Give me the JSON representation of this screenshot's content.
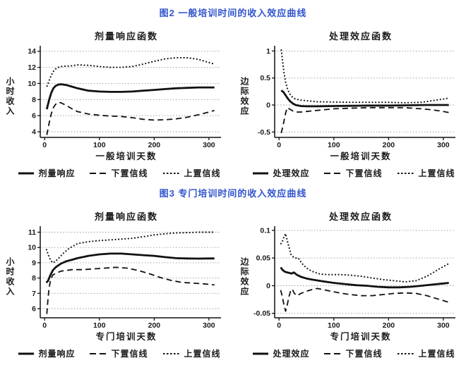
{
  "page": {
    "background": "#ffffff"
  },
  "colors": {
    "heading_blue": "#3254cd",
    "line_black": "#111111",
    "grid_gray": "#999999",
    "text_black": "#1a1a1a"
  },
  "figures": [
    {
      "heading": "图2 一般培训时间的收入效应曲线",
      "panels": [
        {
          "chart_index": 0,
          "legend": [
            {
              "style": "solid",
              "label": "剂量响应"
            },
            {
              "style": "dashed",
              "label": "下置信线"
            },
            {
              "style": "dotted",
              "label": "上置信线"
            }
          ]
        },
        {
          "chart_index": 1,
          "legend": [
            {
              "style": "solid",
              "label": "处理效应"
            },
            {
              "style": "dashed",
              "label": "下置信线"
            },
            {
              "style": "dotted",
              "label": "上置信线"
            }
          ]
        }
      ]
    },
    {
      "heading": "图3 专门培训时间的收入效应曲线",
      "panels": [
        {
          "chart_index": 2,
          "legend": [
            {
              "style": "solid",
              "label": "剂量响应"
            },
            {
              "style": "dashed",
              "label": "下置信线"
            },
            {
              "style": "dotted",
              "label": "上置信线"
            }
          ]
        },
        {
          "chart_index": 3,
          "legend": [
            {
              "style": "solid",
              "label": "处理效应"
            },
            {
              "style": "dashed",
              "label": "下置信线"
            },
            {
              "style": "dotted",
              "label": "上置信线"
            }
          ]
        }
      ]
    }
  ],
  "chart_data": [
    {
      "type": "line",
      "title": "剂量响应函数",
      "xlabel": "一般培训天数",
      "ylabel": "小时收入",
      "xlim": [
        -8,
        322
      ],
      "ylim": [
        3.3,
        14.5
      ],
      "xticks": [
        0,
        100,
        200,
        300
      ],
      "xtick_labels": [
        "0",
        "100",
        "200",
        "300"
      ],
      "yticks": [
        4,
        6,
        8,
        10,
        12,
        14
      ],
      "ytick_labels": [
        "4",
        "6",
        "8",
        "10",
        "12",
        "14"
      ],
      "grid": "horizontal-dotted",
      "legend_position": "bottom",
      "series": [
        {
          "name": "剂量响应",
          "style": "solid",
          "x": [
            4,
            8,
            12,
            16,
            20,
            25,
            30,
            40,
            50,
            60,
            80,
            100,
            120,
            140,
            160,
            180,
            200,
            220,
            240,
            260,
            280,
            300,
            310
          ],
          "y": [
            6.8,
            7.9,
            8.8,
            9.4,
            9.7,
            9.85,
            9.9,
            9.8,
            9.6,
            9.4,
            9.1,
            9.0,
            8.95,
            8.95,
            9.0,
            9.1,
            9.2,
            9.3,
            9.4,
            9.45,
            9.5,
            9.5,
            9.5
          ]
        },
        {
          "name": "下置信线",
          "style": "dashed",
          "x": [
            4,
            8,
            12,
            16,
            20,
            25,
            30,
            40,
            50,
            60,
            80,
            100,
            120,
            140,
            160,
            180,
            200,
            220,
            240,
            260,
            280,
            300,
            310
          ],
          "y": [
            3.6,
            5.0,
            6.2,
            7.0,
            7.4,
            7.65,
            7.6,
            7.25,
            6.85,
            6.5,
            6.2,
            6.05,
            5.95,
            5.9,
            5.75,
            5.55,
            5.45,
            5.5,
            5.6,
            5.8,
            6.1,
            6.45,
            6.65
          ]
        },
        {
          "name": "上置信线",
          "style": "dotted",
          "x": [
            4,
            8,
            12,
            16,
            20,
            25,
            30,
            40,
            50,
            60,
            80,
            100,
            120,
            140,
            160,
            180,
            200,
            220,
            240,
            260,
            280,
            300,
            310
          ],
          "y": [
            9.6,
            10.3,
            11.0,
            11.5,
            11.8,
            12.0,
            12.1,
            12.15,
            12.2,
            12.3,
            12.25,
            12.1,
            12.0,
            12.0,
            12.1,
            12.4,
            12.75,
            13.05,
            13.2,
            13.2,
            13.0,
            12.6,
            12.4
          ]
        }
      ]
    },
    {
      "type": "line",
      "title": "处理效应函数",
      "xlabel": "一般培训天数",
      "ylabel": "边际效应",
      "xlim": [
        -8,
        322
      ],
      "ylim": [
        -0.6,
        1.07
      ],
      "xticks": [
        0,
        100,
        200,
        300
      ],
      "xtick_labels": [
        "0",
        "100",
        "200",
        "300"
      ],
      "yticks": [
        -0.5,
        0,
        0.5,
        1
      ],
      "ytick_labels": [
        "-0.5",
        "0",
        "0.5",
        "1"
      ],
      "grid": "horizontal-dotted",
      "legend_position": "bottom",
      "series": [
        {
          "name": "处理效应",
          "style": "solid",
          "x": [
            4,
            8,
            12,
            16,
            20,
            25,
            30,
            40,
            50,
            70,
            100,
            130,
            160,
            200,
            240,
            270,
            300,
            310
          ],
          "y": [
            0.27,
            0.24,
            0.18,
            0.12,
            0.07,
            0.03,
            0.0,
            -0.02,
            -0.025,
            -0.025,
            -0.02,
            -0.015,
            -0.01,
            -0.01,
            -0.005,
            0.0,
            0.0,
            0.0
          ]
        },
        {
          "name": "下置信线",
          "style": "dashed",
          "x": [
            4,
            8,
            12,
            15,
            20,
            25,
            30,
            40,
            50,
            70,
            100,
            130,
            160,
            200,
            230,
            260,
            280,
            300,
            310
          ],
          "y": [
            -0.52,
            -0.35,
            -0.15,
            -0.05,
            -0.08,
            -0.11,
            -0.13,
            -0.13,
            -0.12,
            -0.1,
            -0.07,
            -0.06,
            -0.05,
            -0.05,
            -0.05,
            -0.07,
            -0.09,
            -0.12,
            -0.14
          ]
        },
        {
          "name": "上置信线",
          "style": "dotted",
          "x": [
            4,
            6,
            9,
            12,
            16,
            20,
            25,
            30,
            40,
            50,
            70,
            100,
            130,
            160,
            200,
            230,
            260,
            280,
            300,
            310
          ],
          "y": [
            1.03,
            0.85,
            0.6,
            0.42,
            0.28,
            0.2,
            0.14,
            0.11,
            0.09,
            0.08,
            0.06,
            0.055,
            0.05,
            0.05,
            0.05,
            0.04,
            0.05,
            0.08,
            0.11,
            0.13
          ]
        }
      ]
    },
    {
      "type": "line",
      "title": "剂量响应函数",
      "xlabel": "专门培训天数",
      "ylabel": "小时收入",
      "xlim": [
        -8,
        322
      ],
      "ylim": [
        5.4,
        11.3
      ],
      "xticks": [
        0,
        100,
        200,
        300
      ],
      "xtick_labels": [
        "0",
        "100",
        "200",
        "300"
      ],
      "yticks": [
        6,
        7,
        8,
        9,
        10,
        11
      ],
      "ytick_labels": [
        "6",
        "7",
        "8",
        "9",
        "10",
        "11"
      ],
      "grid": "horizontal-dotted",
      "legend_position": "bottom",
      "series": [
        {
          "name": "剂量响应",
          "style": "solid",
          "x": [
            3,
            6,
            10,
            15,
            20,
            30,
            40,
            50,
            60,
            80,
            100,
            120,
            140,
            160,
            180,
            200,
            220,
            240,
            260,
            280,
            300,
            310
          ],
          "y": [
            7.7,
            7.8,
            8.15,
            8.5,
            8.7,
            8.95,
            9.1,
            9.2,
            9.3,
            9.45,
            9.55,
            9.6,
            9.6,
            9.55,
            9.5,
            9.45,
            9.37,
            9.3,
            9.28,
            9.27,
            9.28,
            9.28
          ]
        },
        {
          "name": "下置信线",
          "style": "dashed",
          "x": [
            4,
            6,
            8,
            11,
            15,
            20,
            30,
            40,
            50,
            70,
            90,
            110,
            130,
            150,
            170,
            190,
            210,
            230,
            250,
            270,
            290,
            310
          ],
          "y": [
            5.65,
            6.6,
            7.3,
            7.9,
            8.2,
            8.3,
            8.45,
            8.5,
            8.55,
            8.55,
            8.6,
            8.65,
            8.7,
            8.65,
            8.5,
            8.3,
            8.05,
            7.85,
            7.72,
            7.67,
            7.62,
            7.55
          ]
        },
        {
          "name": "上置信线",
          "style": "dotted",
          "x": [
            3,
            7,
            11,
            15,
            20,
            27,
            35,
            45,
            60,
            80,
            100,
            120,
            140,
            160,
            180,
            200,
            220,
            240,
            260,
            280,
            300,
            310
          ],
          "y": [
            9.9,
            9.5,
            9.15,
            9.0,
            9.1,
            9.35,
            9.65,
            9.95,
            10.25,
            10.38,
            10.45,
            10.5,
            10.55,
            10.6,
            10.7,
            10.82,
            10.9,
            10.95,
            10.97,
            11.0,
            11.0,
            11.0
          ]
        }
      ]
    },
    {
      "type": "line",
      "title": "处理效应函数",
      "xlabel": "专门培训天数",
      "ylabel": "边际效应",
      "xlim": [
        -8,
        322
      ],
      "ylim": [
        -0.058,
        0.105
      ],
      "xticks": [
        0,
        100,
        200,
        300
      ],
      "xtick_labels": [
        "0",
        "100",
        "200",
        "300"
      ],
      "yticks": [
        -0.05,
        0,
        0.05,
        0.1
      ],
      "ytick_labels": [
        "-0.05",
        "0",
        "0.05",
        "0.1"
      ],
      "grid": "horizontal-dotted",
      "legend_position": "bottom",
      "series": [
        {
          "name": "处理效应",
          "style": "solid",
          "x": [
            3,
            7,
            11,
            15,
            19,
            23,
            27,
            32,
            40,
            50,
            60,
            80,
            100,
            120,
            140,
            160,
            180,
            200,
            220,
            240,
            260,
            280,
            300,
            310
          ],
          "y": [
            0.033,
            0.028,
            0.025,
            0.024,
            0.023,
            0.022,
            0.024,
            0.02,
            0.016,
            0.013,
            0.011,
            0.008,
            0.005,
            0.003,
            0.001,
            0.0,
            -0.002,
            -0.003,
            -0.003,
            -0.002,
            0.0,
            0.002,
            0.004,
            0.005
          ]
        },
        {
          "name": "下置信线",
          "style": "dashed",
          "x": [
            3,
            6,
            9,
            12,
            15,
            18,
            21,
            24,
            28,
            33,
            40,
            50,
            60,
            70,
            85,
            100,
            115,
            130,
            150,
            170,
            190,
            210,
            230,
            250,
            270,
            290,
            310
          ],
          "y": [
            -0.008,
            -0.02,
            -0.035,
            -0.046,
            -0.035,
            -0.02,
            -0.01,
            -0.006,
            -0.014,
            -0.018,
            -0.014,
            -0.01,
            -0.007,
            -0.005,
            -0.008,
            -0.011,
            -0.014,
            -0.016,
            -0.018,
            -0.018,
            -0.016,
            -0.014,
            -0.013,
            -0.014,
            -0.018,
            -0.024,
            -0.03
          ]
        },
        {
          "name": "上置信线",
          "style": "dotted",
          "x": [
            3,
            6,
            9,
            12,
            15,
            18,
            22,
            26,
            30,
            35,
            42,
            50,
            60,
            75,
            90,
            110,
            130,
            150,
            170,
            190,
            210,
            230,
            250,
            270,
            290,
            310
          ],
          "y": [
            0.075,
            0.08,
            0.088,
            0.094,
            0.082,
            0.07,
            0.056,
            0.052,
            0.05,
            0.05,
            0.04,
            0.032,
            0.026,
            0.021,
            0.02,
            0.02,
            0.019,
            0.017,
            0.014,
            0.011,
            0.009,
            0.007,
            0.009,
            0.017,
            0.029,
            0.04
          ]
        }
      ]
    }
  ]
}
